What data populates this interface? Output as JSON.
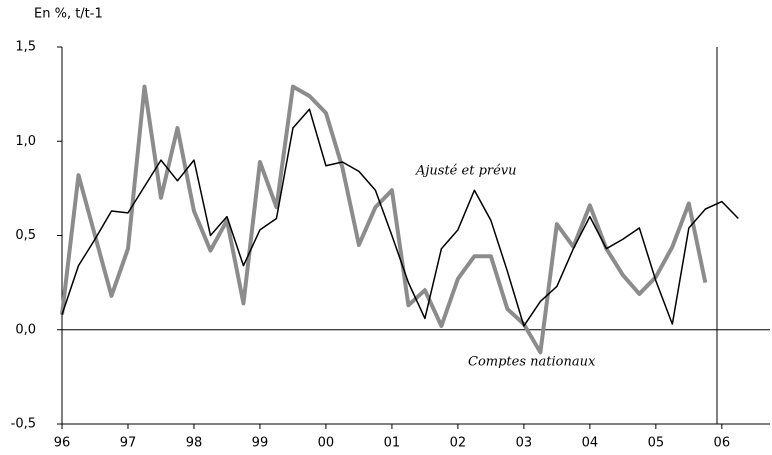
{
  "chart_data": {
    "type": "line",
    "y_label": "En %, t/t-1",
    "x": [
      1996,
      1996.25,
      1996.5,
      1996.75,
      1997,
      1997.25,
      1997.5,
      1997.75,
      1998,
      1998.25,
      1998.5,
      1998.75,
      1999,
      1999.25,
      1999.5,
      1999.75,
      2000,
      2000.25,
      2000.5,
      2000.75,
      2001,
      2001.25,
      2001.5,
      2001.75,
      2002,
      2002.25,
      2002.5,
      2002.75,
      2003,
      2003.25,
      2003.5,
      2003.75,
      2004,
      2004.25,
      2004.5,
      2004.75,
      2005,
      2005.25,
      2005.5,
      2005.75,
      2006,
      2006.25
    ],
    "series": [
      {
        "name": "Comptes nationaux",
        "color": "#8c8c8c",
        "width": 4,
        "values": [
          0.08,
          0.82,
          0.5,
          0.18,
          0.43,
          1.29,
          0.7,
          1.07,
          0.63,
          0.42,
          0.58,
          0.14,
          0.89,
          0.65,
          1.29,
          1.24,
          1.15,
          0.86,
          0.45,
          0.65,
          0.74,
          0.13,
          0.21,
          0.02,
          0.27,
          0.39,
          0.39,
          0.11,
          0.03,
          -0.12,
          0.56,
          0.44,
          0.66,
          0.43,
          0.29,
          0.19,
          0.28,
          0.44,
          0.67,
          0.25,
          null,
          null
        ]
      },
      {
        "name": "Ajusté et prévu",
        "color": "#000000",
        "width": 1.5,
        "values": [
          0.08,
          0.34,
          0.48,
          0.63,
          0.62,
          0.76,
          0.9,
          0.79,
          0.9,
          0.5,
          0.6,
          0.34,
          0.53,
          0.59,
          1.07,
          1.17,
          0.87,
          0.89,
          0.84,
          0.74,
          0.5,
          0.25,
          0.06,
          0.43,
          0.53,
          0.74,
          0.58,
          0.31,
          0.02,
          0.15,
          0.23,
          0.43,
          0.6,
          0.43,
          0.48,
          0.54,
          0.26,
          0.03,
          0.54,
          0.64,
          0.68,
          0.59
        ]
      }
    ],
    "xlim": [
      1996,
      2006.73
    ],
    "xticks": [
      {
        "value": 1996,
        "label": "96"
      },
      {
        "value": 1997,
        "label": "97"
      },
      {
        "value": 1998,
        "label": "98"
      },
      {
        "value": 1999,
        "label": "99"
      },
      {
        "value": 2000,
        "label": "00"
      },
      {
        "value": 2001,
        "label": "01"
      },
      {
        "value": 2002,
        "label": "02"
      },
      {
        "value": 2003,
        "label": "03"
      },
      {
        "value": 2004,
        "label": "04"
      },
      {
        "value": 2005,
        "label": "05"
      },
      {
        "value": 2006,
        "label": "06"
      }
    ],
    "ylim": [
      -0.5,
      1.5
    ],
    "yticks": [
      {
        "value": -0.5,
        "label": "-0,5"
      },
      {
        "value": 0,
        "label": "0,0"
      },
      {
        "value": 0.5,
        "label": "0,5"
      },
      {
        "value": 1,
        "label": "1,0"
      },
      {
        "value": 1.5,
        "label": "1,5"
      }
    ]
  }
}
